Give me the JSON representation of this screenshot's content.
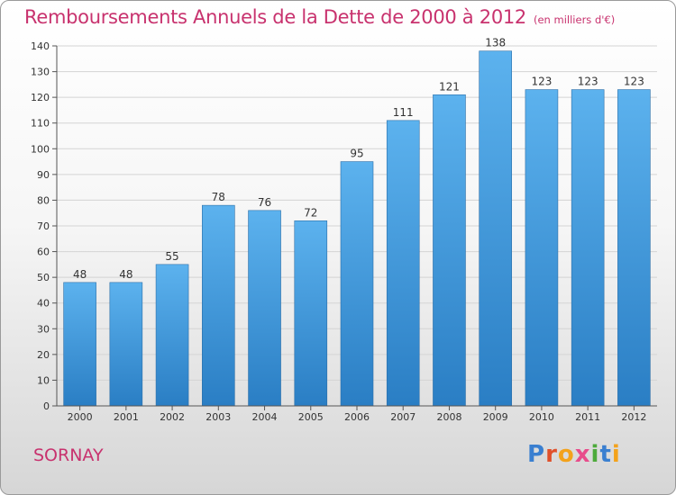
{
  "header": {
    "title": "Remboursements Annuels de la Dette de 2000 à 2012",
    "unit": "(en milliers d'€)"
  },
  "footer": {
    "place": "SORNAY",
    "logo_letters": [
      "P",
      "r",
      "o",
      "x",
      "i",
      "t",
      "i"
    ],
    "logo_colors": [
      "#3a7fd0",
      "#e0502a",
      "#f3a21b",
      "#e84c8b",
      "#4daa3b",
      "#3a7fd0",
      "#f3a21b"
    ]
  },
  "colors": {
    "title": "#c8326e",
    "bar_top": "#5cb2ee",
    "bar_bottom": "#2a7ec4"
  },
  "chart_data": {
    "type": "bar",
    "title": "Remboursements Annuels de la Dette de 2000 à 2012",
    "categories": [
      "2000",
      "2001",
      "2002",
      "2003",
      "2004",
      "2005",
      "2006",
      "2007",
      "2008",
      "2009",
      "2010",
      "2011",
      "2012"
    ],
    "values": [
      48,
      48,
      55,
      78,
      76,
      72,
      95,
      111,
      121,
      138,
      123,
      123,
      123
    ],
    "value_labels": [
      "48",
      "48",
      "55",
      "78",
      "76",
      "72",
      "95",
      "111",
      "121",
      "138",
      "123",
      "123",
      "123"
    ],
    "xlabel": "",
    "ylabel": "",
    "ylim": [
      0,
      140
    ],
    "yticks": [
      0,
      10,
      20,
      30,
      40,
      50,
      60,
      70,
      80,
      90,
      100,
      110,
      120,
      130,
      140
    ],
    "grid": true,
    "legend": "none"
  }
}
